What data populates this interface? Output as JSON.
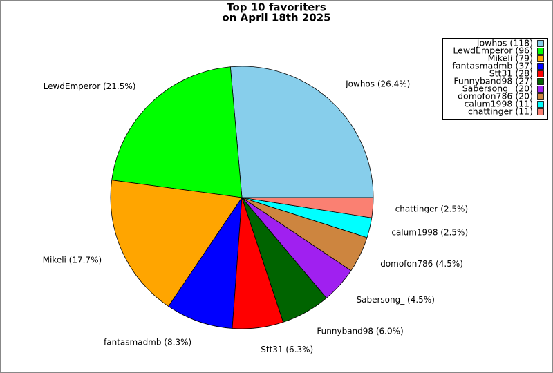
{
  "chart_data": {
    "type": "pie",
    "title": "Top 10 favoriters",
    "subtitle": "on April 18th 2025",
    "categories": [
      "Jowhos",
      "LewdEmperor",
      "Mikeli",
      "fantasmadmb",
      "Stt31",
      "Funnyband98",
      "Sabersong_",
      "domofon786",
      "calum1998",
      "chattinger"
    ],
    "values": [
      118,
      96,
      79,
      37,
      28,
      27,
      20,
      20,
      11,
      11
    ],
    "value_labels": [
      "Jowhos (26.4%)",
      "LewdEmperor (21.5%)",
      "Mikeli (17.7%)",
      "fantasmadmb (8.3%)",
      "Stt31 (6.3%)",
      "Funnyband98 (6.0%)",
      "Sabersong_ (4.5%)",
      "domofon786 (4.5%)",
      "calum1998 (2.5%)",
      "chattinger (2.5%)"
    ],
    "legend_labels": [
      "Jowhos (118)",
      "LewdEmperor (96)",
      "Mikeli (79)",
      "fantasmadmb (37)",
      "Stt31 (28)",
      "Funnyband98 (27)",
      "Sabersong_ (20)",
      "domofon786 (20)",
      "calum1998 (11)",
      "chattinger (11)"
    ],
    "colors": [
      "#87ceeb",
      "#00ff00",
      "#ffa500",
      "#0000ff",
      "#ff0000",
      "#006400",
      "#a020f0",
      "#cd853f",
      "#00ffff",
      "#fa8072"
    ],
    "legend_position": "upper right"
  }
}
